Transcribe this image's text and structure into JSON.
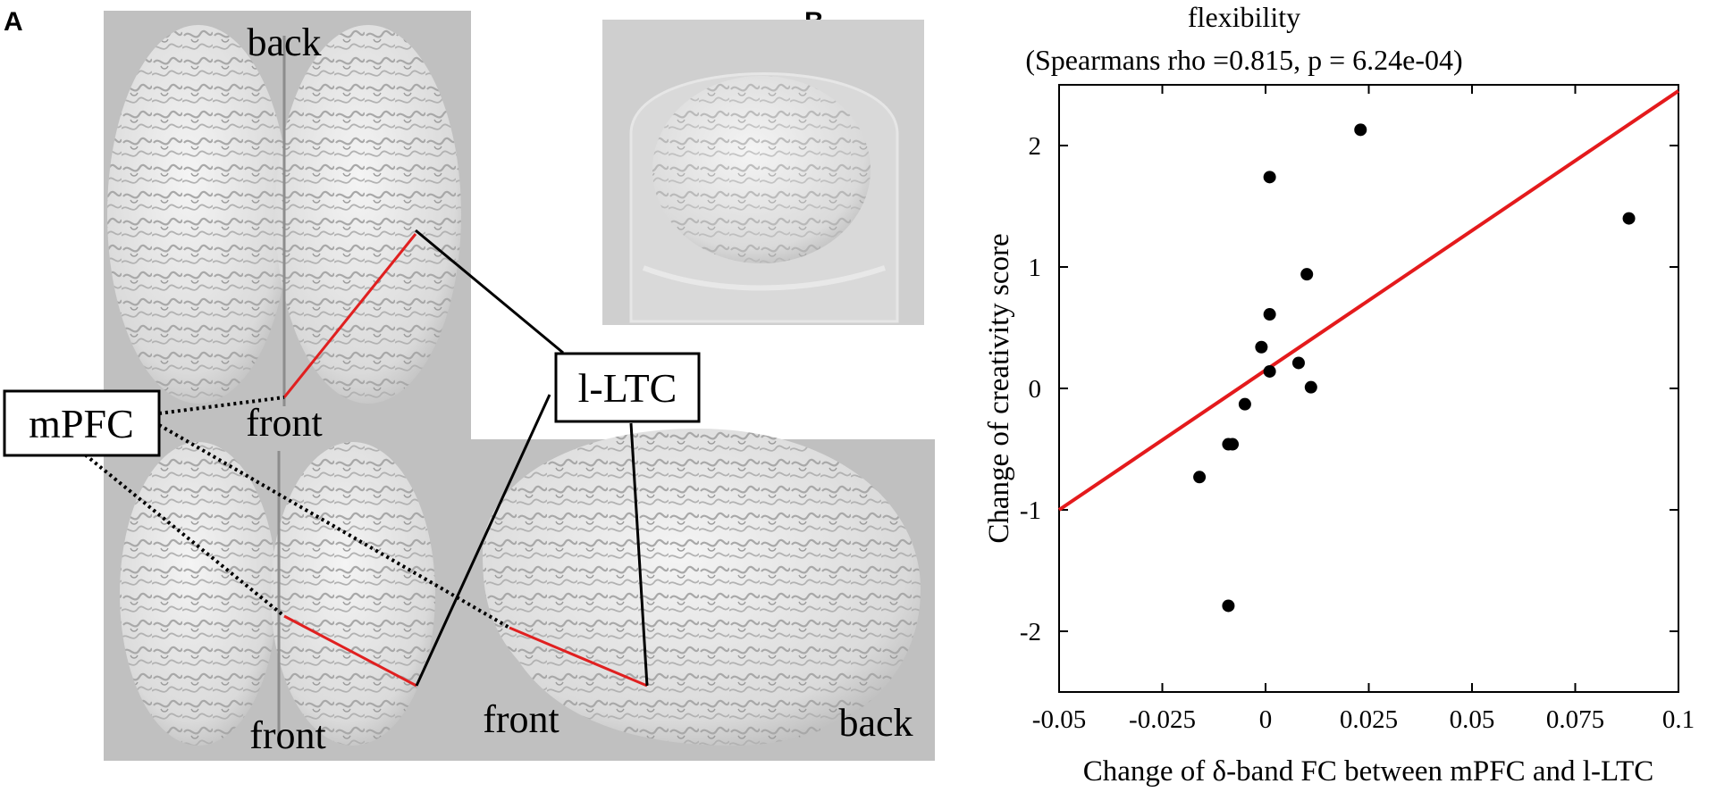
{
  "panels": {
    "a_letter": "A",
    "b_letter": "B"
  },
  "panel_a": {
    "labels": {
      "top_back": "back",
      "top_front": "front",
      "bottom_left_front": "front",
      "bottom_right_front": "front",
      "bottom_right_back": "back",
      "box_mpfc": "mPFC",
      "box_lltc": "l-LTC"
    },
    "colors": {
      "panel_bg": "#c0c0c0",
      "inset_bg": "#cfcfcf",
      "brain_fill": "#e6e6e6",
      "connection_line": "#e02020"
    }
  },
  "panel_b": {
    "title_line1": "flexibility",
    "title_line2": "(Spearmans  rho =0.815, p  = 6.24e-04)",
    "colors": {
      "fit_line": "#e41a1c",
      "points": "#000000"
    }
  },
  "chart_data": {
    "type": "scatter",
    "title": "flexibility (Spearmans rho =0.815, p = 6.24e-04)",
    "xlabel": "Change of δ-band FC between mPFC and l-LTC",
    "ylabel": "Change of creativity score",
    "xlim": [
      -0.05,
      0.1
    ],
    "ylim": [
      -2.5,
      2.5
    ],
    "xticks": [
      "-0.05",
      "-0.025",
      "0",
      "0.025",
      "0.05",
      "0.075",
      "0.1"
    ],
    "xtick_values": [
      -0.05,
      -0.025,
      0,
      0.025,
      0.05,
      0.075,
      0.1
    ],
    "yticks": [
      "-2",
      "-1",
      "0",
      "1",
      "2"
    ],
    "ytick_values": [
      -2,
      -1,
      0,
      1,
      2
    ],
    "points": [
      {
        "x": -0.016,
        "y": -0.73
      },
      {
        "x": -0.009,
        "y": -1.79
      },
      {
        "x": -0.009,
        "y": -0.46
      },
      {
        "x": -0.008,
        "y": -0.46
      },
      {
        "x": -0.005,
        "y": -0.13
      },
      {
        "x": -0.001,
        "y": 0.34
      },
      {
        "x": 0.001,
        "y": 0.14
      },
      {
        "x": 0.001,
        "y": 0.61
      },
      {
        "x": 0.001,
        "y": 1.74
      },
      {
        "x": 0.008,
        "y": 0.21
      },
      {
        "x": 0.01,
        "y": 0.94
      },
      {
        "x": 0.011,
        "y": 0.01
      },
      {
        "x": 0.023,
        "y": 2.13
      },
      {
        "x": 0.088,
        "y": 1.4
      }
    ],
    "fit_line": {
      "x": [
        -0.05,
        0.1
      ],
      "y": [
        -1.0,
        2.45
      ]
    },
    "grid": false
  }
}
